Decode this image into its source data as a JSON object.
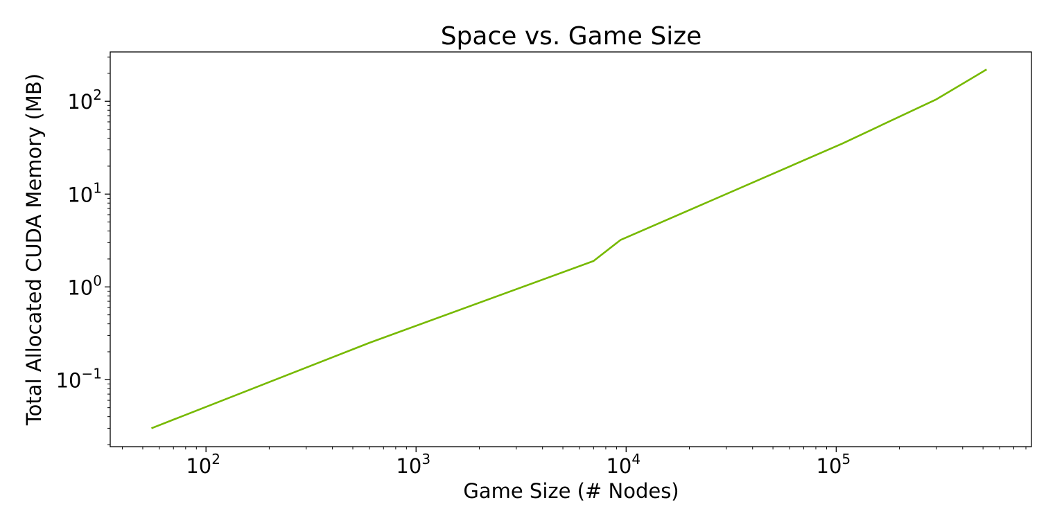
{
  "chart_data": {
    "type": "line",
    "title": "Space vs. Game Size",
    "xlabel": "Game Size (# Nodes)",
    "ylabel": "Total Allocated CUDA Memory (MB)",
    "xscale": "log",
    "yscale": "log",
    "xlim": [
      35,
      850000
    ],
    "ylim": [
      0.019,
      340
    ],
    "x_ticks": [
      {
        "value": 100,
        "base": "10",
        "exp": "2"
      },
      {
        "value": 1000,
        "base": "10",
        "exp": "3"
      },
      {
        "value": 10000,
        "base": "10",
        "exp": "4"
      },
      {
        "value": 100000,
        "base": "10",
        "exp": "5"
      }
    ],
    "y_ticks": [
      {
        "value": 0.1,
        "base": "10",
        "exp": "−1"
      },
      {
        "value": 1,
        "base": "10",
        "exp": "0"
      },
      {
        "value": 10,
        "base": "10",
        "exp": "1"
      },
      {
        "value": 100,
        "base": "10",
        "exp": "2"
      }
    ],
    "grid": false,
    "series": [
      {
        "color": "#76b900",
        "x": [
          55,
          600,
          7000,
          9400,
          107000,
          300000,
          520000
        ],
        "y": [
          0.03,
          0.25,
          1.9,
          3.2,
          35,
          105,
          220
        ]
      }
    ]
  }
}
